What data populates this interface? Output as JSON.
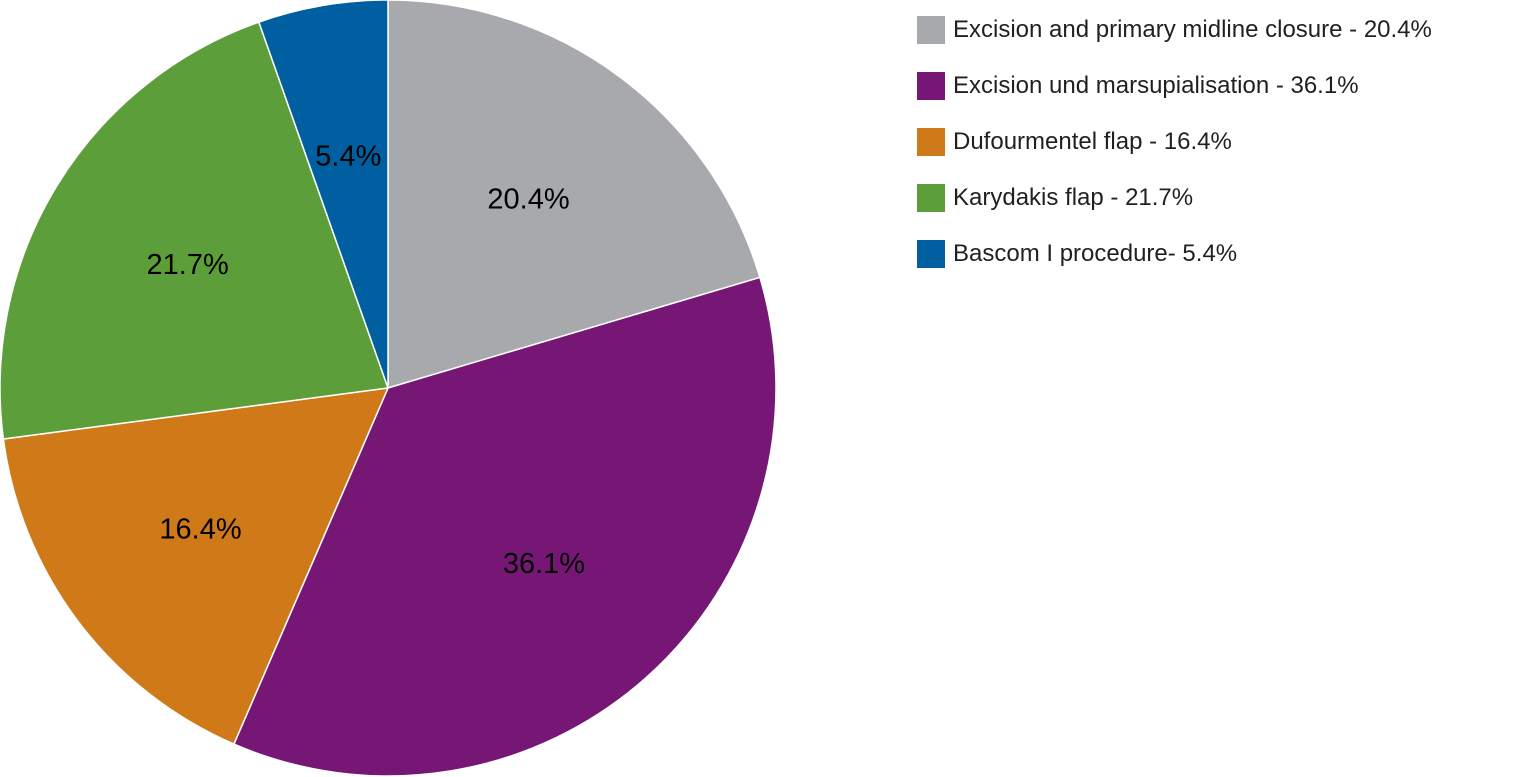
{
  "chart_data": {
    "type": "pie",
    "title": "",
    "start_angle_deg": 0,
    "direction": "clockwise",
    "slices": [
      {
        "name": "Excision and primary midline closure - 20.4%",
        "value": 20.4,
        "label": "20.4%",
        "color": "#a7a9ac"
      },
      {
        "name": "Excision und marsupialisation - 36.1%",
        "value": 36.1,
        "label": "36.1%",
        "color": "#771775"
      },
      {
        "name": "Dufourmentel flap - 16.4%",
        "value": 16.4,
        "label": "16.4%",
        "color": "#cf7918"
      },
      {
        "name": "Karydakis flap - 21.7%",
        "value": 21.7,
        "label": "21.7%",
        "color": "#5c9f3a"
      },
      {
        "name": "Bascom I procedure- 5.4%",
        "value": 5.4,
        "label": "5.4%",
        "color": "#005fa0"
      }
    ],
    "legend": {
      "position": "top-right"
    }
  }
}
